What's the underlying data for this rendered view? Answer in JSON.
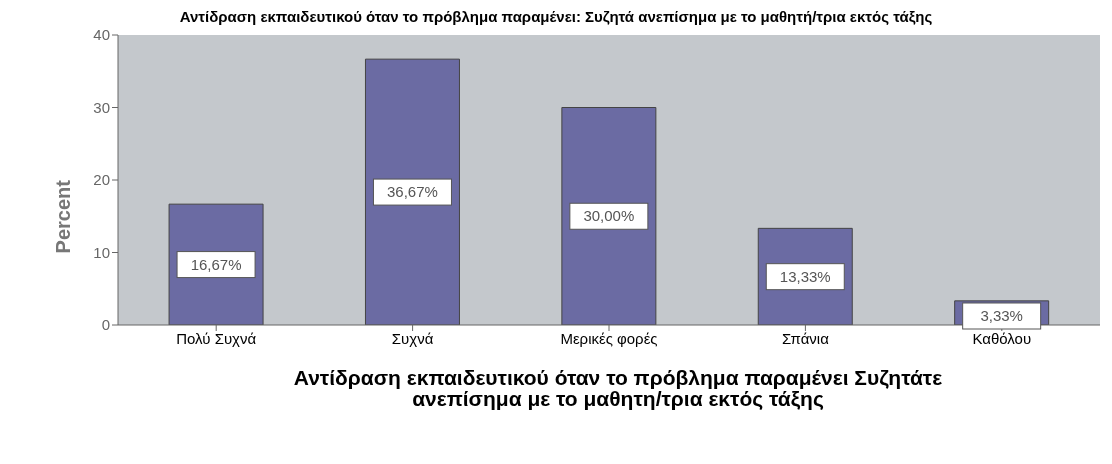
{
  "chart_data": {
    "type": "bar",
    "title": "Αντίδραση εκπαιδευτικού όταν το πρόβλημα παραμένει: Συζητά ανεπίσημα με το μαθητή/τρια εκτός τάξης",
    "xlabel": "Αντίδραση εκπαιδευτικού όταν το πρόβλημα παραμένει Συζητάτε ανεπίσημα με το μαθητη/τρια εκτός τάξης",
    "ylabel": "Percent",
    "categories": [
      "Πολύ Συχνά",
      "Συχνά",
      "Μερικές φορές",
      "Σπάνια",
      "Καθόλου"
    ],
    "values": [
      16.67,
      36.67,
      30.0,
      13.33,
      3.33
    ],
    "value_labels": [
      "16,67%",
      "36,67%",
      "30,00%",
      "13,33%",
      "3,33%"
    ],
    "color": "#6b6ba3",
    "ylim": [
      0,
      40
    ],
    "yticks": [
      0,
      10,
      20,
      30,
      40
    ],
    "grid": false
  }
}
